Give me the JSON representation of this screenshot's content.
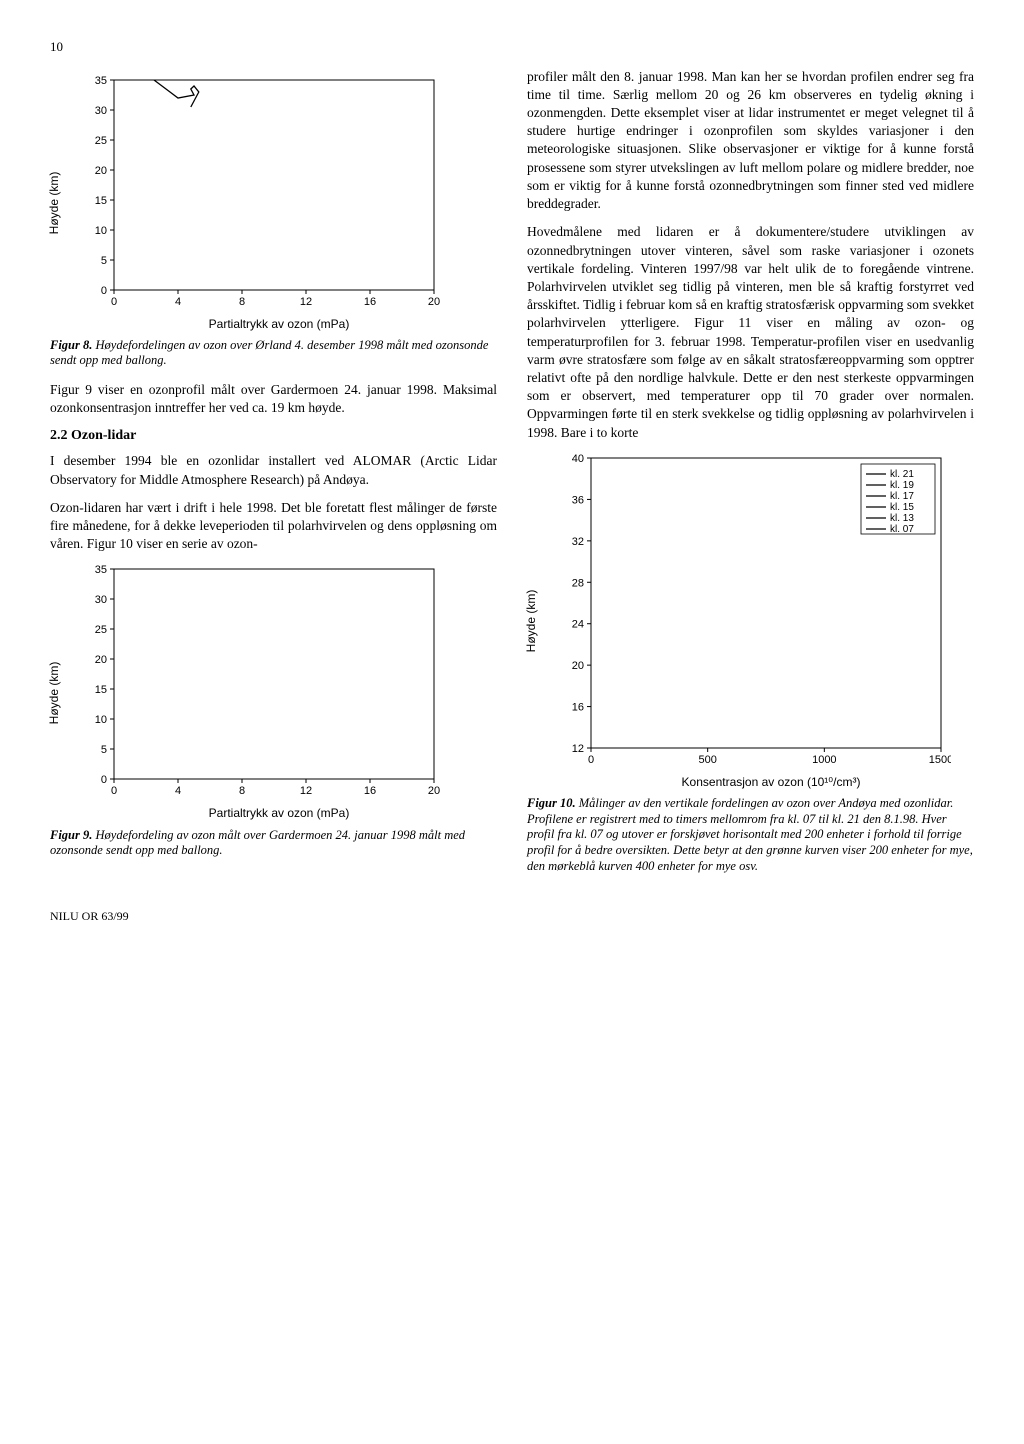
{
  "page_number": "10",
  "footer": "NILU OR 63/99",
  "left_column": {
    "fig8": {
      "type": "line",
      "xlabel": "Partialtrykk av ozon (mPa)",
      "ylabel": "Høyde (km)",
      "xlim": [
        0,
        20
      ],
      "xticks": [
        0,
        4,
        8,
        12,
        16,
        20
      ],
      "ylim": [
        0,
        35
      ],
      "yticks": [
        0,
        5,
        10,
        15,
        20,
        25,
        30,
        35
      ],
      "line_color": "#000000",
      "background_color": "#ffffff",
      "border_color": "#000000",
      "data_points": [
        [
          2.5,
          35
        ],
        [
          3,
          34
        ],
        [
          3.5,
          33
        ],
        [
          4,
          32
        ],
        [
          5,
          32.5
        ],
        [
          4.8,
          33.5
        ],
        [
          5,
          34
        ],
        [
          5.3,
          33
        ],
        [
          5,
          31.5
        ],
        [
          4.8,
          30.5
        ]
      ],
      "caption_label": "Figur 8.",
      "caption_text": "Høydefordelingen av ozon over Ørland 4. desember 1998 målt med ozonsonde sendt opp med ballong."
    },
    "para_fig9_intro": "Figur 9 viser en ozonprofil målt over Gardermoen 24. januar 1998. Maksimal ozonkonsentrasjon inntreffer her ved ca. 19 km høyde.",
    "sect_heading": "2.2 Ozon-lidar",
    "para_lidar1": "I desember 1994 ble en ozonlidar installert ved ALOMAR (Arctic Lidar Observatory for Middle Atmosphere Research) på Andøya.",
    "para_lidar2": "Ozon-lidaren har vært i drift i hele 1998. Det ble foretatt flest målinger de første fire månedene, for å dekke leveperioden til polarhvirvelen og dens oppløsning om våren. Figur 10 viser en serie av ozon-",
    "fig9": {
      "type": "line",
      "xlabel": "Partialtrykk av ozon (mPa)",
      "ylabel": "Høyde (km)",
      "xlim": [
        0,
        20
      ],
      "xticks": [
        0,
        4,
        8,
        12,
        16,
        20
      ],
      "ylim": [
        0,
        35
      ],
      "yticks": [
        0,
        5,
        10,
        15,
        20,
        25,
        30,
        35
      ],
      "line_color": "#000000",
      "background_color": "#ffffff",
      "border_color": "#000000",
      "caption_label": "Figur 9.",
      "caption_text": "Høydefordeling av ozon målt over Gardermoen 24. januar 1998 målt med ozonsonde sendt opp med ballong."
    }
  },
  "right_column": {
    "para1": "profiler målt den 8. januar 1998. Man kan her se hvordan profilen endrer seg fra time til time. Særlig mellom 20 og 26 km observeres en tydelig økning i ozonmengden. Dette eksemplet viser at lidar instrumentet er meget velegnet til å studere hurtige endringer i ozonprofilen som skyldes variasjoner i den meteorologiske situasjonen. Slike observasjoner er viktige for å kunne forstå prosessene som styrer utvekslingen av luft mellom polare og midlere bredder, noe som er viktig for å kunne forstå ozonnedbrytningen som finner sted ved midlere breddegrader.",
    "para2": "Hovedmålene med lidaren er å dokumentere/studere utviklingen av ozonnedbrytningen utover vinteren, såvel som raske variasjoner i ozonets vertikale fordeling. Vinteren 1997/98 var helt ulik de to foregående vintrene. Polarhvirvelen utviklet seg tidlig på vinteren, men ble så kraftig forstyrret ved årsskiftet. Tidlig i februar kom så en kraftig stratosfærisk oppvarming som svekket polarhvirvelen ytterligere. Figur 11 viser en måling av ozon- og temperaturprofilen for 3. februar 1998. Temperatur-profilen viser en usedvanlig varm øvre stratosfære som følge av en såkalt stratosfæreoppvarming som opptrer relativt ofte på den nordlige halvkule. Dette er den nest sterkeste oppvarmingen som er observert, med temperaturer opp til 70 grader over normalen. Oppvarmingen førte til en sterk svekkelse og tidlig oppløsning av polarhvirvelen i 1998. Bare i to korte",
    "fig10": {
      "type": "line-multi",
      "xlabel": "Konsentrasjon av ozon (10¹⁰/cm³)",
      "ylabel": "Høyde (km)",
      "xlim": [
        0,
        1500
      ],
      "xticks": [
        0,
        500,
        1000,
        1500
      ],
      "ylim": [
        12,
        40
      ],
      "yticks": [
        12,
        16,
        20,
        24,
        28,
        32,
        36,
        40
      ],
      "border_color": "#000000",
      "background_color": "#ffffff",
      "legend": [
        {
          "label": "kl. 21",
          "color": "#000000"
        },
        {
          "label": "kl. 19",
          "color": "#000000"
        },
        {
          "label": "kl. 17",
          "color": "#000000"
        },
        {
          "label": "kl. 15",
          "color": "#000000"
        },
        {
          "label": "kl. 13",
          "color": "#000000"
        },
        {
          "label": "kl. 07",
          "color": "#000000"
        }
      ],
      "caption_label": "Figur 10.",
      "caption_text": "Målinger av den vertikale fordelingen av ozon over Andøya med ozonlidar. Profilene er registrert med to timers mellomrom fra kl. 07 til kl. 21 den 8.1.98. Hver profil fra kl. 07 og utover er forskjøvet horisontalt med 200 enheter i forhold til forrige profil for å bedre oversikten. Dette betyr at den grønne kurven viser 200 enheter for mye, den mørkeblå kurven 400 enheter for mye osv."
    }
  }
}
